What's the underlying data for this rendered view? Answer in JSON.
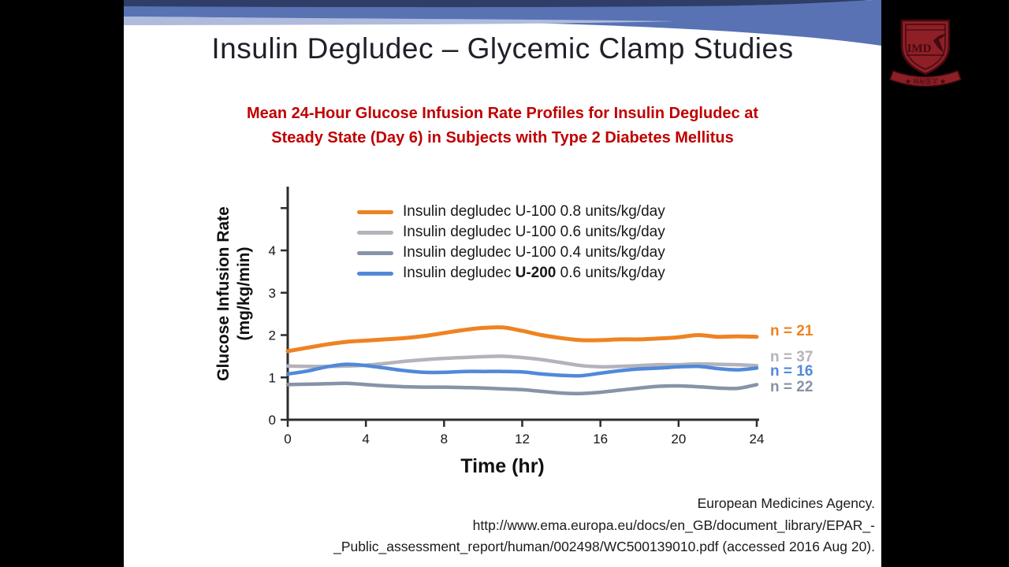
{
  "slide": {
    "title": "Insulin Degludec – Glycemic Clamp Studies",
    "subtitle": {
      "line1": "Mean 24-Hour Glucose Infusion Rate Profiles for Insulin Degludec at",
      "line2": "Steady State (Day 6) in Subjects with Type 2 Diabetes Mellitus"
    },
    "theme": {
      "navy": "#2e3e66",
      "band_blue": "#5872b4",
      "band_light": "#aebbdc",
      "title_color": "#20202a",
      "subtitle_color": "#c00000"
    },
    "citation": {
      "lines": [
        "European Medicines Agency.",
        "http://www.ema.europa.eu/docs/en_GB/document_library/EPAR_-",
        "_Public_assessment_report/human/002498/WC500139010.pdf (accessed 2016 Aug 20)."
      ]
    }
  },
  "logo": {
    "monogram": "IMD",
    "ribbon_text": "★ 揭秘医学 ★",
    "shield_color": "#8e1f27",
    "detail_color": "#420a0e"
  },
  "chart_data": {
    "type": "line",
    "title": "Mean 24-Hour Glucose Infusion Rate Profiles for Insulin Degludec at Steady State (Day 6) in Subjects with Type 2 Diabetes Mellitus",
    "xlabel": "Time (hr)",
    "ylabel_line1": "Glucose Infusion Rate",
    "ylabel_line2": "(mg/kg/min)",
    "xlim": [
      0,
      24
    ],
    "ylim": [
      0,
      5
    ],
    "grid": false,
    "legend_position": "inside-top-center",
    "x_ticks": [
      0,
      4,
      8,
      12,
      16,
      20,
      24
    ],
    "y_ticks_labeled": [
      0,
      1,
      2,
      3,
      4
    ],
    "y_ticks_unlabeled": [
      5
    ],
    "x": [
      0,
      1,
      2,
      3,
      4,
      5,
      6,
      7,
      8,
      9,
      10,
      11,
      12,
      13,
      14,
      15,
      16,
      17,
      18,
      19,
      20,
      21,
      22,
      23,
      24
    ],
    "series": [
      {
        "label_pre": "Insulin degludec U-100 0.8 units/kg/day",
        "label_bold": "",
        "label_post": "",
        "color": "#ee8322",
        "n_label": "n = 21",
        "values": [
          1.62,
          1.7,
          1.78,
          1.84,
          1.87,
          1.9,
          1.93,
          1.98,
          2.05,
          2.12,
          2.17,
          2.18,
          2.1,
          2.0,
          1.93,
          1.88,
          1.88,
          1.9,
          1.9,
          1.92,
          1.95,
          2.0,
          1.96,
          1.97,
          1.96
        ]
      },
      {
        "label_pre": "Insulin degludec U-100 0.6 units/kg/day",
        "label_bold": "",
        "label_post": "",
        "color": "#b3b3bb",
        "n_label": "n = 37",
        "values": [
          1.27,
          1.26,
          1.26,
          1.27,
          1.29,
          1.33,
          1.38,
          1.42,
          1.45,
          1.47,
          1.49,
          1.5,
          1.47,
          1.42,
          1.35,
          1.28,
          1.25,
          1.26,
          1.28,
          1.3,
          1.3,
          1.32,
          1.31,
          1.3,
          1.28
        ]
      },
      {
        "label_pre": "Insulin degludec U-100 0.4 units/kg/day",
        "label_bold": "",
        "label_post": "",
        "color": "#8793a7",
        "n_label": "n = 22",
        "values": [
          0.83,
          0.84,
          0.85,
          0.86,
          0.83,
          0.8,
          0.78,
          0.77,
          0.77,
          0.76,
          0.75,
          0.73,
          0.71,
          0.67,
          0.63,
          0.62,
          0.65,
          0.7,
          0.75,
          0.79,
          0.8,
          0.78,
          0.75,
          0.74,
          0.83
        ]
      },
      {
        "label_pre": "Insulin degludec ",
        "label_bold": "U-200",
        "label_post": " 0.6 units/kg/day",
        "color": "#5189d8",
        "n_label": "n = 16",
        "values": [
          1.08,
          1.15,
          1.25,
          1.31,
          1.28,
          1.22,
          1.16,
          1.12,
          1.12,
          1.14,
          1.14,
          1.14,
          1.13,
          1.08,
          1.05,
          1.04,
          1.1,
          1.16,
          1.2,
          1.22,
          1.25,
          1.26,
          1.21,
          1.18,
          1.22
        ]
      }
    ]
  }
}
